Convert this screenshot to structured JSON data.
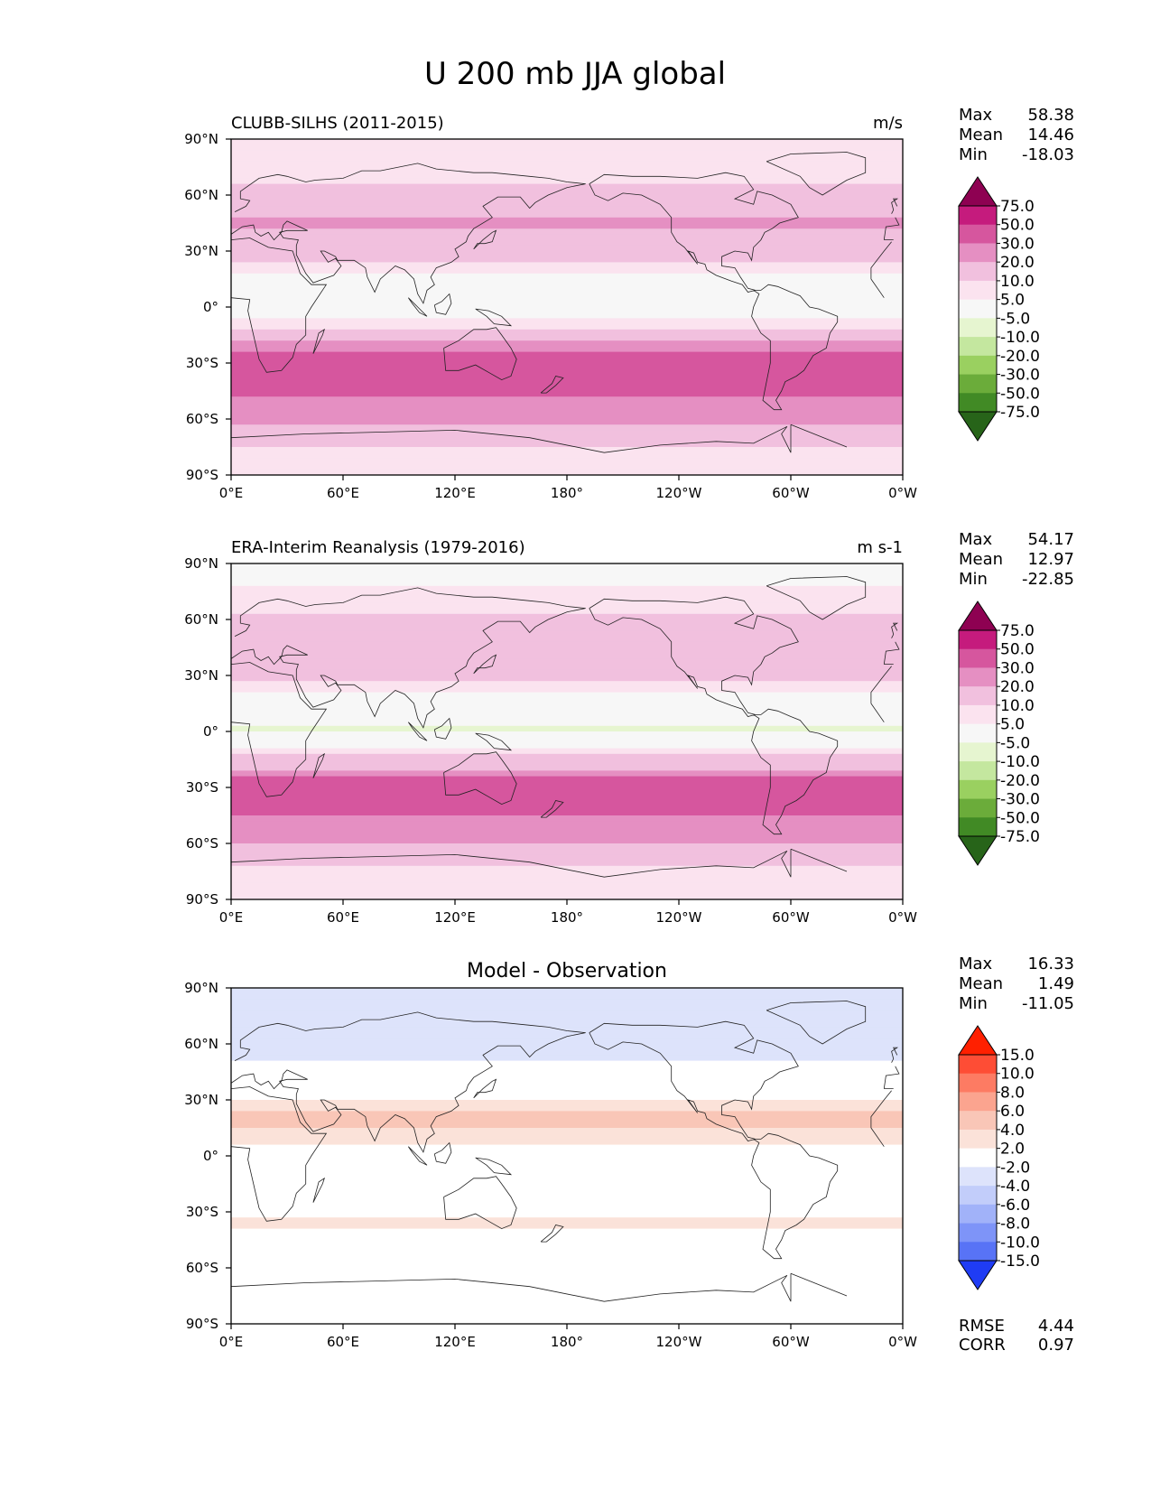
{
  "figure_title": "U 200 mb JJA global",
  "chart_data": [
    {
      "type": "heatmap",
      "title": "CLUBB-SILHS (2011-2015)",
      "units": "m/s",
      "field": "zonal wind at 200 mb",
      "colormap": "PiYG_r",
      "xticks": [
        "0°E",
        "60°E",
        "120°E",
        "180°",
        "120°W",
        "60°W",
        "0°W"
      ],
      "yticks": [
        "90°N",
        "60°N",
        "30°N",
        "0°",
        "30°S",
        "60°S",
        "90°S"
      ],
      "xlim": [
        0,
        360
      ],
      "ylim": [
        -90,
        90
      ],
      "stats": [
        {
          "label": "Max",
          "value": "58.38"
        },
        {
          "label": "Mean",
          "value": "14.46"
        },
        {
          "label": "Min",
          "value": "-18.03"
        }
      ],
      "levels": [
        "75.0",
        "50.0",
        "30.0",
        "20.0",
        "10.0",
        "5.0",
        "-5.0",
        "-10.0",
        "-20.0",
        "-30.0",
        "-50.0",
        "-75.0"
      ],
      "colors": [
        "#8e0152",
        "#c51b7d",
        "#d6569e",
        "#e58fc2",
        "#f1c0de",
        "#fbe3ef",
        "#f7f7f7",
        "#e6f5d0",
        "#c4e79f",
        "#9ad060",
        "#6bac3a",
        "#418a25",
        "#276419"
      ],
      "zonal_profile_ms": [
        {
          "lat": 80,
          "u": 5
        },
        {
          "lat": 60,
          "u": 12
        },
        {
          "lat": 45,
          "u": 22
        },
        {
          "lat": 30,
          "u": 14
        },
        {
          "lat": 15,
          "u": 2
        },
        {
          "lat": 0,
          "u": -4
        },
        {
          "lat": -15,
          "u": 15
        },
        {
          "lat": -30,
          "u": 40
        },
        {
          "lat": -45,
          "u": 32
        },
        {
          "lat": -60,
          "u": 22
        },
        {
          "lat": -75,
          "u": 9
        }
      ]
    },
    {
      "type": "heatmap",
      "title": "ERA-Interim Reanalysis (1979-2016)",
      "units": "m s-1",
      "field": "zonal wind at 200 mb",
      "colormap": "PiYG_r",
      "xticks": [
        "0°E",
        "60°E",
        "120°E",
        "180°",
        "120°W",
        "60°W",
        "0°W"
      ],
      "yticks": [
        "90°N",
        "60°N",
        "30°N",
        "0°",
        "30°S",
        "60°S",
        "90°S"
      ],
      "xlim": [
        0,
        360
      ],
      "ylim": [
        -90,
        90
      ],
      "stats": [
        {
          "label": "Max",
          "value": "54.17"
        },
        {
          "label": "Mean",
          "value": "12.97"
        },
        {
          "label": "Min",
          "value": "-22.85"
        }
      ],
      "levels": [
        "75.0",
        "50.0",
        "30.0",
        "20.0",
        "10.0",
        "5.0",
        "-5.0",
        "-10.0",
        "-20.0",
        "-30.0",
        "-50.0",
        "-75.0"
      ],
      "colors": [
        "#8e0152",
        "#c51b7d",
        "#d6569e",
        "#e58fc2",
        "#f1c0de",
        "#fbe3ef",
        "#f7f7f7",
        "#e6f5d0",
        "#c4e79f",
        "#9ad060",
        "#6bac3a",
        "#418a25",
        "#276419"
      ],
      "zonal_profile_ms": [
        {
          "lat": 80,
          "u": 4
        },
        {
          "lat": 60,
          "u": 11
        },
        {
          "lat": 45,
          "u": 20
        },
        {
          "lat": 30,
          "u": 12
        },
        {
          "lat": 15,
          "u": 0
        },
        {
          "lat": 0,
          "u": -6
        },
        {
          "lat": -15,
          "u": 12
        },
        {
          "lat": -30,
          "u": 38
        },
        {
          "lat": -45,
          "u": 30
        },
        {
          "lat": -60,
          "u": 20
        },
        {
          "lat": -75,
          "u": 8
        }
      ]
    },
    {
      "type": "heatmap",
      "title": "Model - Observation",
      "units": "",
      "field": "difference",
      "colormap": "bwr",
      "xticks": [
        "0°E",
        "60°E",
        "120°E",
        "180°",
        "120°W",
        "60°W",
        "0°W"
      ],
      "yticks": [
        "90°N",
        "60°N",
        "30°N",
        "0°",
        "30°S",
        "60°S",
        "90°S"
      ],
      "xlim": [
        0,
        360
      ],
      "ylim": [
        -90,
        90
      ],
      "stats": [
        {
          "label": "Max",
          "value": "16.33"
        },
        {
          "label": "Mean",
          "value": "1.49"
        },
        {
          "label": "Min",
          "value": "-11.05"
        }
      ],
      "extra_stats": [
        {
          "label": "RMSE",
          "value": "4.44"
        },
        {
          "label": "CORR",
          "value": "0.97"
        }
      ],
      "levels": [
        "15.0",
        "10.0",
        "8.0",
        "6.0",
        "4.0",
        "2.0",
        "-2.0",
        "-4.0",
        "-6.0",
        "-8.0",
        "-10.0",
        "-15.0"
      ],
      "colors": [
        "#ff2000",
        "#fe4d35",
        "#fd7b63",
        "#fba48f",
        "#f9c6b7",
        "#fbe2d9",
        "#ffffff",
        "#dde3fb",
        "#c2cdfa",
        "#a1b2f9",
        "#7e94f8",
        "#5873f6",
        "#1f3cf4"
      ],
      "zonal_profile_ms": [
        {
          "lat": 75,
          "u": -3
        },
        {
          "lat": 50,
          "u": -2
        },
        {
          "lat": 35,
          "u": 0
        },
        {
          "lat": 20,
          "u": 5
        },
        {
          "lat": 5,
          "u": 2
        },
        {
          "lat": -10,
          "u": 0
        },
        {
          "lat": -25,
          "u": -1
        },
        {
          "lat": -35,
          "u": 3
        },
        {
          "lat": -50,
          "u": -1
        },
        {
          "lat": -70,
          "u": 2
        },
        {
          "lat": -85,
          "u": -1
        }
      ]
    }
  ]
}
